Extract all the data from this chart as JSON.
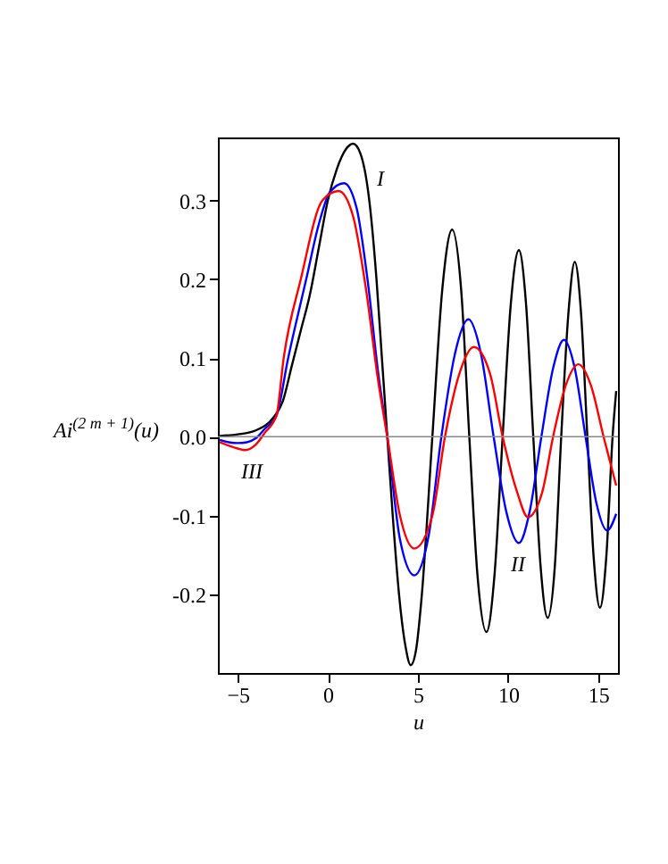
{
  "chart_data": {
    "type": "line",
    "xlabel": "u",
    "ylabel": "Ai$^{(2 m + 1)}$(u)",
    "xlim": [
      -6.1,
      16.1
    ],
    "xticks": [
      -5,
      0,
      5,
      10,
      15
    ],
    "ylim": [
      -0.3,
      0.38
    ],
    "yticks": [
      {
        "value": -0.2,
        "label": "-0.2"
      },
      {
        "value": -0.1,
        "label": "-0.1"
      },
      {
        "value": 0,
        "label": "0.0"
      },
      0.1,
      0.2,
      0.3
    ],
    "grid": false,
    "legend": false,
    "marker": "none",
    "line_style": "solid",
    "ref_lines": [
      {
        "axis": "y",
        "value": 0,
        "color": "#888888"
      }
    ],
    "series": [
      {
        "name": "I",
        "color": "#000000",
        "x": [
          -6,
          -5,
          -4,
          -3,
          -2.5,
          -2,
          -1.5,
          -1,
          -0.5,
          0,
          0.5,
          1,
          1.4,
          1.8,
          2.3,
          2.7,
          3,
          3.3,
          3.6,
          3.95,
          4.3,
          4.6,
          4.9,
          5.2,
          5.8,
          6.35,
          6.9,
          7.4,
          7.85,
          8.3,
          8.8,
          9.25,
          9.7,
          10.15,
          10.6,
          11,
          11.4,
          11.8,
          12.2,
          12.6,
          12.95,
          13.35,
          13.7,
          14.05,
          14.4,
          14.75,
          15.1,
          15.45,
          15.8,
          16
        ],
        "values": [
          0.001,
          0.003,
          0.008,
          0.025,
          0.045,
          0.09,
          0.135,
          0.18,
          0.24,
          0.3,
          0.34,
          0.365,
          0.372,
          0.36,
          0.3,
          0.2,
          0.1,
          0,
          -0.1,
          -0.2,
          -0.265,
          -0.29,
          -0.27,
          -0.205,
          0,
          0.187,
          0.263,
          0.186,
          0,
          -0.175,
          -0.248,
          -0.175,
          0,
          0.168,
          0.237,
          0.168,
          0,
          -0.163,
          -0.23,
          -0.163,
          0,
          0.157,
          0.222,
          0.157,
          0,
          -0.153,
          -0.217,
          -0.153,
          0,
          0.058
        ]
      },
      {
        "name": "II",
        "color": "#0000ff",
        "x": [
          -6,
          -5.5,
          -5,
          -4.5,
          -4,
          -3.5,
          -2.85,
          -2.2,
          -1.2,
          -0.5,
          0.1,
          0.9,
          1.6,
          2.2,
          2.8,
          3.3,
          4,
          4.8,
          5.6,
          6.3,
          7.05,
          7.8,
          8.5,
          9.2,
          9.9,
          10.6,
          11.2,
          11.85,
          12.5,
          13.1,
          13.7,
          14.3,
          14.9,
          15.5,
          16
        ],
        "values": [
          -0.004,
          -0.007,
          -0.008,
          -0.007,
          -0.002,
          0.01,
          0.027,
          0.1,
          0.2,
          0.27,
          0.31,
          0.322,
          0.29,
          0.2,
          0.08,
          0,
          -0.13,
          -0.176,
          -0.125,
          0,
          0.105,
          0.149,
          0.105,
          0,
          -0.095,
          -0.135,
          -0.095,
          0,
          0.087,
          0.123,
          0.087,
          0,
          -0.084,
          -0.119,
          -0.098
        ]
      },
      {
        "name": "III",
        "color": "#ff0000",
        "x": [
          -6,
          -5,
          -4.6,
          -4,
          -3.5,
          -2.85,
          -2.45,
          -1.5,
          -0.3,
          0.6,
          1.4,
          2.1,
          2.8,
          3.3,
          4,
          4.8,
          5.8,
          6.5,
          7.3,
          8.1,
          9,
          9.7,
          10.5,
          11.1,
          11.9,
          12.5,
          13.2,
          13.9,
          14.6,
          15.3,
          16
        ],
        "values": [
          -0.007,
          -0.015,
          -0.017,
          -0.01,
          0.005,
          0.027,
          0.1,
          0.2,
          0.3,
          0.312,
          0.28,
          0.19,
          0.07,
          0,
          -0.1,
          -0.142,
          -0.1,
          0,
          0.08,
          0.114,
          0.08,
          0,
          -0.07,
          -0.102,
          -0.07,
          0,
          0.065,
          0.092,
          0.065,
          0,
          -0.062
        ]
      }
    ]
  }
}
